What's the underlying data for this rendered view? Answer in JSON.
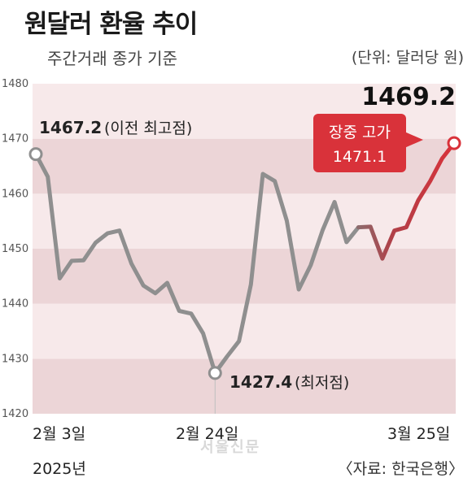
{
  "title": "원달러 환율 추이",
  "subtitle": "주간거래 종가 기준",
  "unit": "(단위: 달러당 원)",
  "source": "〈자료: 한국은행〉",
  "watermark": "서울신문",
  "x_labels": [
    "2월 3일",
    "2025년",
    "2월 24일",
    "3월 25일"
  ],
  "annotations": {
    "prev_high_value": "1467.2",
    "prev_high_label": "(이전 최고점)",
    "low_value": "1427.4",
    "low_label": "(최저점)",
    "last_value": "1469.2",
    "intraday_label": "장중 고가",
    "intraday_value": "1471.1"
  },
  "colors": {
    "gray_line": "#8f8f8f",
    "red_line": "#d9323a",
    "band_light": "#f7e9ea",
    "band_dark": "#ecd5d7",
    "callout": "#d9323a"
  },
  "chart_data": {
    "type": "line",
    "title": "원달러 환율 추이",
    "ylim": [
      1420,
      1480
    ],
    "yticks": [
      1420,
      1430,
      1440,
      1450,
      1460,
      1470,
      1480
    ],
    "x_axis_labels": [
      "2월 3일",
      "2월 24일",
      "3월 25일"
    ],
    "series": [
      {
        "values": [
          1467.2,
          1463.1,
          1444.6,
          1447.8,
          1447.9,
          1451.1,
          1452.8,
          1453.3,
          1447.3,
          1443.3,
          1441.9,
          1443.8,
          1438.7,
          1438.2,
          1434.6,
          1427.4,
          1430.4,
          1433.2,
          1443.5,
          1463.6,
          1462.3,
          1455.1,
          1442.6,
          1447.0,
          1453.4,
          1458.5,
          1451.2,
          1453.9,
          1454.0,
          1448.2,
          1453.3,
          1453.9,
          1458.8,
          1462.3,
          1466.4,
          1469.2
        ]
      }
    ],
    "highlight_segment_start_index": 27
  }
}
